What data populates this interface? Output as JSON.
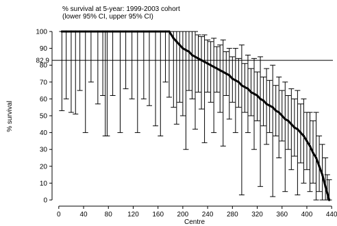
{
  "chart_data": {
    "type": "scatter",
    "title": "% survival at 5-year: 1999-2003 cohort",
    "subtitle": "(lower 95% CI, upper 95% CI)",
    "xlabel": "Centre",
    "ylabel": "% survival",
    "xlim": [
      -2,
      442
    ],
    "ylim": [
      0,
      100
    ],
    "xticks": [
      0,
      40,
      80,
      120,
      160,
      200,
      240,
      280,
      320,
      360,
      400,
      440
    ],
    "yticks": [
      0,
      10,
      20,
      30,
      40,
      50,
      60,
      70,
      80,
      90,
      100
    ],
    "reference_line": {
      "value": 82.9,
      "label": "82.9"
    },
    "grid": false,
    "legend": "none",
    "series": [
      {
        "points": [
          {
            "x": 5,
            "y": 100,
            "lower": 53,
            "upper": 100
          },
          {
            "x": 12,
            "y": 100,
            "lower": 60,
            "upper": 100
          },
          {
            "x": 20,
            "y": 100,
            "lower": 52,
            "upper": 100
          },
          {
            "x": 27,
            "y": 100,
            "lower": 51,
            "upper": 100
          },
          {
            "x": 34,
            "y": 100,
            "lower": 65,
            "upper": 100
          },
          {
            "x": 43,
            "y": 100,
            "lower": 40,
            "upper": 100
          },
          {
            "x": 52,
            "y": 100,
            "lower": 70,
            "upper": 100
          },
          {
            "x": 63,
            "y": 100,
            "lower": 57,
            "upper": 100
          },
          {
            "x": 71,
            "y": 100,
            "lower": 62,
            "upper": 100
          },
          {
            "x": 75,
            "y": 100,
            "lower": 38,
            "upper": 100
          },
          {
            "x": 78,
            "y": 100,
            "lower": 38,
            "upper": 100
          },
          {
            "x": 87,
            "y": 100,
            "lower": 62,
            "upper": 100
          },
          {
            "x": 99,
            "y": 100,
            "lower": 40,
            "upper": 100
          },
          {
            "x": 108,
            "y": 100,
            "lower": 66,
            "upper": 100
          },
          {
            "x": 118,
            "y": 100,
            "lower": 60,
            "upper": 100
          },
          {
            "x": 127,
            "y": 100,
            "lower": 40,
            "upper": 100
          },
          {
            "x": 137,
            "y": 100,
            "lower": 60,
            "upper": 100
          },
          {
            "x": 146,
            "y": 100,
            "lower": 56,
            "upper": 100
          },
          {
            "x": 156,
            "y": 100,
            "lower": 44,
            "upper": 100
          },
          {
            "x": 164,
            "y": 100,
            "lower": 38,
            "upper": 100
          },
          {
            "x": 172,
            "y": 100,
            "lower": 70,
            "upper": 100
          },
          {
            "x": 178,
            "y": 100,
            "lower": 61,
            "upper": 100
          },
          {
            "x": 185,
            "y": 96,
            "lower": 55,
            "upper": 100
          },
          {
            "x": 190,
            "y": 94,
            "lower": 45,
            "upper": 100
          },
          {
            "x": 195,
            "y": 92,
            "lower": 58,
            "upper": 100
          },
          {
            "x": 200,
            "y": 90,
            "lower": 50,
            "upper": 100
          },
          {
            "x": 205,
            "y": 89,
            "lower": 30,
            "upper": 100
          },
          {
            "x": 210,
            "y": 88,
            "lower": 65,
            "upper": 100
          },
          {
            "x": 215,
            "y": 86,
            "lower": 60,
            "upper": 100
          },
          {
            "x": 220,
            "y": 85,
            "lower": 42,
            "upper": 100
          },
          {
            "x": 225,
            "y": 84,
            "lower": 64,
            "upper": 98
          },
          {
            "x": 230,
            "y": 83,
            "lower": 54,
            "upper": 97
          },
          {
            "x": 235,
            "y": 82,
            "lower": 34,
            "upper": 98
          },
          {
            "x": 240,
            "y": 81,
            "lower": 64,
            "upper": 95
          },
          {
            "x": 245,
            "y": 80,
            "lower": 58,
            "upper": 94
          },
          {
            "x": 250,
            "y": 79,
            "lower": 40,
            "upper": 96
          },
          {
            "x": 255,
            "y": 78,
            "lower": 64,
            "upper": 91
          },
          {
            "x": 260,
            "y": 77,
            "lower": 52,
            "upper": 92
          },
          {
            "x": 265,
            "y": 76,
            "lower": 32,
            "upper": 95
          },
          {
            "x": 270,
            "y": 75,
            "lower": 62,
            "upper": 88
          },
          {
            "x": 275,
            "y": 74,
            "lower": 48,
            "upper": 90
          },
          {
            "x": 280,
            "y": 72,
            "lower": 58,
            "upper": 85
          },
          {
            "x": 285,
            "y": 71,
            "lower": 40,
            "upper": 90
          },
          {
            "x": 290,
            "y": 70,
            "lower": 55,
            "upper": 84
          },
          {
            "x": 295,
            "y": 68,
            "lower": 3,
            "upper": 92
          },
          {
            "x": 300,
            "y": 67,
            "lower": 52,
            "upper": 81
          },
          {
            "x": 305,
            "y": 66,
            "lower": 40,
            "upper": 86
          },
          {
            "x": 310,
            "y": 64,
            "lower": 50,
            "upper": 78
          },
          {
            "x": 315,
            "y": 63,
            "lower": 30,
            "upper": 84
          },
          {
            "x": 320,
            "y": 62,
            "lower": 47,
            "upper": 76
          },
          {
            "x": 325,
            "y": 60,
            "lower": 8,
            "upper": 85
          },
          {
            "x": 330,
            "y": 59,
            "lower": 44,
            "upper": 73
          },
          {
            "x": 335,
            "y": 57,
            "lower": 33,
            "upper": 78
          },
          {
            "x": 340,
            "y": 56,
            "lower": 40,
            "upper": 71
          },
          {
            "x": 345,
            "y": 55,
            "lower": 2,
            "upper": 80
          },
          {
            "x": 350,
            "y": 53,
            "lower": 38,
            "upper": 68
          },
          {
            "x": 355,
            "y": 52,
            "lower": 25,
            "upper": 73
          },
          {
            "x": 360,
            "y": 50,
            "lower": 35,
            "upper": 65
          },
          {
            "x": 365,
            "y": 48,
            "lower": 5,
            "upper": 70
          },
          {
            "x": 370,
            "y": 47,
            "lower": 30,
            "upper": 62
          },
          {
            "x": 375,
            "y": 45,
            "lower": 18,
            "upper": 66
          },
          {
            "x": 380,
            "y": 43,
            "lower": 26,
            "upper": 60
          },
          {
            "x": 385,
            "y": 42,
            "lower": 3,
            "upper": 65
          },
          {
            "x": 390,
            "y": 40,
            "lower": 22,
            "upper": 57
          },
          {
            "x": 395,
            "y": 38,
            "lower": 10,
            "upper": 60
          },
          {
            "x": 400,
            "y": 35,
            "lower": 18,
            "upper": 52
          },
          {
            "x": 405,
            "y": 32,
            "lower": 5,
            "upper": 52
          },
          {
            "x": 410,
            "y": 28,
            "lower": 10,
            "upper": 47
          },
          {
            "x": 415,
            "y": 25,
            "lower": 0,
            "upper": 52
          },
          {
            "x": 420,
            "y": 20,
            "lower": 5,
            "upper": 38
          },
          {
            "x": 425,
            "y": 15,
            "lower": 0,
            "upper": 33
          },
          {
            "x": 430,
            "y": 8,
            "lower": 0,
            "upper": 25
          },
          {
            "x": 433,
            "y": 4,
            "lower": 0,
            "upper": 15
          },
          {
            "x": 436,
            "y": 0,
            "lower": 0,
            "upper": 12
          }
        ]
      }
    ]
  }
}
